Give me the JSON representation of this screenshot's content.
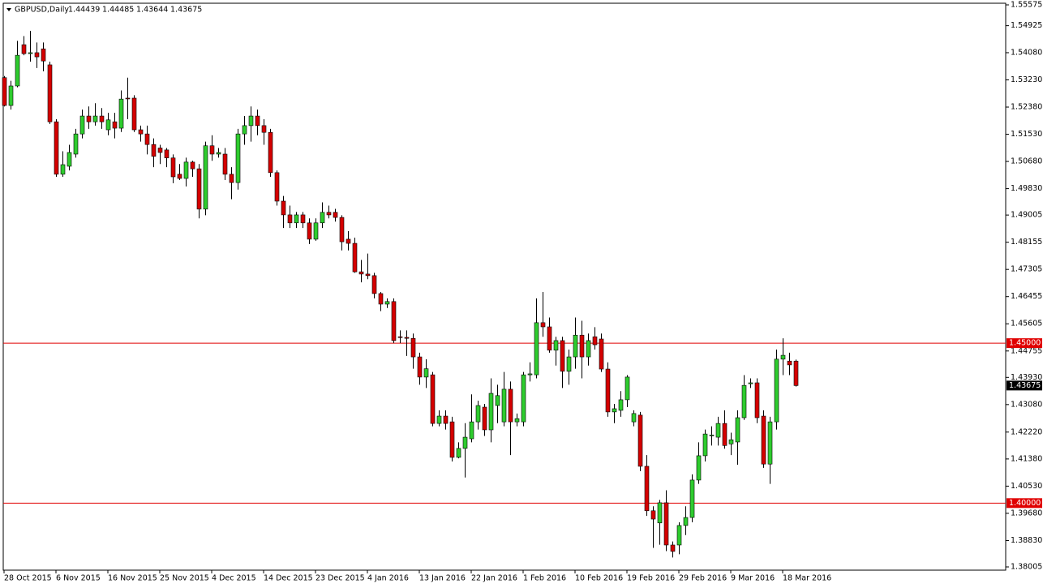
{
  "chart_data": {
    "type": "candlestick",
    "symbol": "GBPUSD,Daily",
    "categories": [
      "28 Oct 2015",
      null,
      null,
      null,
      null,
      null,
      null,
      null,
      "6 Nov 2015",
      null,
      null,
      null,
      null,
      null,
      null,
      null,
      "16 Nov 2015",
      null,
      null,
      null,
      null,
      null,
      null,
      null,
      "25 Nov 2015",
      null,
      null,
      null,
      null,
      null,
      null,
      null,
      "4 Dec 2015",
      null,
      null,
      null,
      null,
      null,
      null,
      null,
      "14 Dec 2015",
      null,
      null,
      null,
      null,
      null,
      null,
      null,
      "23 Dec 2015",
      null,
      null,
      null,
      null,
      null,
      null,
      null,
      "4 Jan 2016",
      null,
      null,
      null,
      null,
      null,
      null,
      null,
      "13 Jan 2016",
      null,
      null,
      null,
      null,
      null,
      null,
      null,
      "22 Jan 2016",
      null,
      null,
      null,
      null,
      null,
      null,
      null,
      "1 Feb 2016",
      null,
      null,
      null,
      null,
      null,
      null,
      null,
      "10 Feb 2016",
      null,
      null,
      null,
      null,
      null,
      null,
      null,
      "19 Feb 2016",
      null,
      null,
      null,
      null,
      null,
      null,
      null,
      "29 Feb 2016",
      null,
      null,
      null,
      null,
      null,
      null,
      null,
      "9 Mar 2016",
      null,
      null,
      null,
      null,
      null,
      null,
      null,
      "18 Mar 2016",
      null,
      null
    ],
    "open": [
      1.533,
      1.5243,
      1.5304,
      1.5433,
      1.5405,
      1.5408,
      1.542,
      1.537,
      1.5192,
      1.5028,
      1.5053,
      1.5091,
      1.5154,
      1.521,
      1.5192,
      1.521,
      1.5167,
      1.5192,
      1.5172,
      1.5266,
      1.5266,
      1.5167,
      1.5154,
      1.5121,
      1.511,
      1.5104,
      1.5079,
      1.5028,
      1.5015,
      1.5066,
      1.5045,
      1.4919,
      1.5117,
      1.5091,
      1.5091,
      1.5028,
      1.5002,
      1.5154,
      1.518,
      1.521,
      1.518,
      1.5159,
      1.5033,
      1.4944,
      1.4901,
      1.4876,
      1.4901,
      1.4876,
      1.4825,
      1.4876,
      1.4909,
      1.4909,
      1.4893,
      1.4825,
      1.4812,
      1.4723,
      1.4716,
      1.4711,
      1.4655,
      1.4622,
      1.463,
      1.452,
      1.4518,
      1.4515,
      1.4457,
      1.4394,
      1.4401,
      1.4249,
      1.4272,
      1.4254,
      1.4143,
      1.4171,
      1.4201,
      1.4254,
      1.43,
      1.4229,
      1.4305,
      1.4254,
      1.4356,
      1.4254,
      1.4254,
      1.4401,
      1.4401,
      1.4564,
      1.4551,
      1.4478,
      1.4508,
      1.4412,
      1.4457,
      1.4525,
      1.4457,
      1.452,
      1.4513,
      1.4419,
      1.4285,
      1.429,
      1.4323,
      1.4254,
      1.4275,
      1.4115,
      1.3976,
      1.3938,
      1.4001,
      1.3869,
      1.3869,
      1.393,
      1.3955,
      1.4072,
      1.4148,
      1.4211,
      1.4206,
      1.4249,
      1.4185,
      1.4191,
      1.4267,
      1.4373,
      1.4376,
      1.4272,
      1.4122,
      1.4254,
      1.445,
      1.4444,
      1.44439
    ],
    "high": [
      1.5335,
      1.532,
      1.5445,
      1.546,
      1.5476,
      1.544,
      1.544,
      1.538,
      1.52,
      1.51,
      1.512,
      1.517,
      1.523,
      1.524,
      1.525,
      1.5235,
      1.522,
      1.522,
      1.529,
      1.533,
      1.5275,
      1.518,
      1.518,
      1.514,
      1.512,
      1.511,
      1.509,
      1.506,
      1.508,
      1.507,
      1.506,
      1.513,
      1.515,
      1.511,
      1.511,
      1.505,
      1.517,
      1.521,
      1.524,
      1.523,
      1.52,
      1.517,
      1.504,
      1.496,
      1.493,
      1.491,
      1.491,
      1.489,
      1.489,
      1.494,
      1.493,
      1.492,
      1.49,
      1.485,
      1.483,
      1.476,
      1.478,
      1.472,
      1.466,
      1.464,
      1.464,
      1.454,
      1.454,
      1.453,
      1.447,
      1.445,
      1.441,
      1.429,
      1.429,
      1.427,
      1.419,
      1.425,
      1.434,
      1.432,
      1.431,
      1.439,
      1.437,
      1.441,
      1.438,
      1.428,
      1.441,
      1.444,
      1.464,
      1.466,
      1.458,
      1.452,
      1.452,
      1.448,
      1.458,
      1.457,
      1.453,
      1.455,
      1.453,
      1.444,
      1.431,
      1.435,
      1.44,
      1.429,
      1.4285,
      1.415,
      1.399,
      1.401,
      1.404,
      1.388,
      1.394,
      1.399,
      1.409,
      1.419,
      1.423,
      1.424,
      1.427,
      1.429,
      1.422,
      1.429,
      1.44,
      1.439,
      1.439,
      1.429,
      1.427,
      1.448,
      1.4515,
      1.447,
      1.44485
    ],
    "low": [
      1.524,
      1.523,
      1.53,
      1.54,
      1.538,
      1.536,
      1.535,
      1.5185,
      1.502,
      1.502,
      1.504,
      1.508,
      1.514,
      1.517,
      1.518,
      1.517,
      1.515,
      1.514,
      1.516,
      1.52,
      1.516,
      1.513,
      1.509,
      1.505,
      1.506,
      1.505,
      1.5,
      1.501,
      1.499,
      1.502,
      1.489,
      1.49,
      1.507,
      1.508,
      1.501,
      1.495,
      1.498,
      1.512,
      1.513,
      1.515,
      1.512,
      1.502,
      1.493,
      1.486,
      1.486,
      1.486,
      1.486,
      1.481,
      1.482,
      1.486,
      1.489,
      1.488,
      1.479,
      1.479,
      1.472,
      1.469,
      1.47,
      1.464,
      1.46,
      1.461,
      1.45,
      1.45,
      1.446,
      1.442,
      1.437,
      1.436,
      1.424,
      1.424,
      1.423,
      1.413,
      1.414,
      1.408,
      1.419,
      1.423,
      1.421,
      1.419,
      1.425,
      1.424,
      1.415,
      1.424,
      1.424,
      1.438,
      1.439,
      1.452,
      1.447,
      1.443,
      1.436,
      1.437,
      1.442,
      1.439,
      1.443,
      1.448,
      1.441,
      1.427,
      1.425,
      1.427,
      1.43,
      1.424,
      1.41,
      1.396,
      1.386,
      1.387,
      1.385,
      1.383,
      1.384,
      1.39,
      1.394,
      1.406,
      1.413,
      1.418,
      1.418,
      1.417,
      1.415,
      1.412,
      1.426,
      1.436,
      1.425,
      1.411,
      1.406,
      1.423,
      1.44,
      1.44,
      1.43644
    ],
    "close": [
      1.5243,
      1.5304,
      1.54,
      1.5405,
      1.5408,
      1.5395,
      1.5382,
      1.5192,
      1.5028,
      1.5058,
      1.5096,
      1.5154,
      1.521,
      1.5192,
      1.521,
      1.5192,
      1.5198,
      1.5172,
      1.5263,
      1.5264,
      1.5167,
      1.5154,
      1.5121,
      1.5084,
      1.5096,
      1.5079,
      1.502,
      1.5015,
      1.5066,
      1.5045,
      1.4919,
      1.5117,
      1.5091,
      1.5096,
      1.5028,
      1.5002,
      1.5154,
      1.518,
      1.521,
      1.518,
      1.5159,
      1.5033,
      1.4944,
      1.4901,
      1.4876,
      1.4901,
      1.4876,
      1.4825,
      1.4876,
      1.4909,
      1.4901,
      1.4893,
      1.4817,
      1.4812,
      1.4723,
      1.4716,
      1.4711,
      1.4655,
      1.4622,
      1.463,
      1.4508,
      1.4518,
      1.4515,
      1.4457,
      1.4394,
      1.442,
      1.4249,
      1.4272,
      1.4249,
      1.4143,
      1.4171,
      1.4206,
      1.4254,
      1.4305,
      1.4229,
      1.4343,
      1.4336,
      1.4356,
      1.4254,
      1.4264,
      1.4401,
      1.4404,
      1.4564,
      1.4551,
      1.4478,
      1.4508,
      1.4412,
      1.4457,
      1.4525,
      1.4457,
      1.4508,
      1.4495,
      1.4419,
      1.4285,
      1.4295,
      1.4323,
      1.4394,
      1.428,
      1.4115,
      1.3976,
      1.395,
      1.4001,
      1.3869,
      1.3849,
      1.393,
      1.3955,
      1.4072,
      1.4148,
      1.4216,
      1.4213,
      1.4249,
      1.418,
      1.4198,
      1.4267,
      1.4368,
      1.4376,
      1.4267,
      1.4122,
      1.4254,
      1.445,
      1.4462,
      1.4432,
      1.43675
    ],
    "up_color": "#2ecc2e",
    "down_color": "#d40000",
    "level_color": "#e00000",
    "ylim": [
      1.38005,
      1.55575
    ],
    "yticks": [
      1.55575,
      1.54925,
      {
        "value": 1.5408,
        "label": "1.54080"
      },
      {
        "value": 1.5323,
        "label": "1.53230"
      },
      {
        "value": 1.5238,
        "label": "1.52380"
      },
      {
        "value": 1.5153,
        "label": "1.51530"
      },
      {
        "value": 1.5068,
        "label": "1.50680"
      },
      {
        "value": 1.4983,
        "label": "1.49830"
      },
      1.49005,
      1.48155,
      1.47305,
      1.46455,
      1.45605,
      1.44755,
      {
        "value": 1.4393,
        "label": "1.43930"
      },
      {
        "value": 1.4308,
        "label": "1.43080"
      },
      {
        "value": 1.4222,
        "label": "1.42220"
      },
      {
        "value": 1.4138,
        "label": "1.41380"
      },
      {
        "value": 1.4053,
        "label": "1.40530"
      },
      {
        "value": 1.3968,
        "label": "1.39680"
      },
      {
        "value": 1.3883,
        "label": "1.38830"
      },
      1.38005
    ],
    "levels": [
      {
        "value": 1.45,
        "label": "1.45000"
      },
      {
        "value": 1.4,
        "label": "1.40000"
      }
    ],
    "grid": false
  }
}
